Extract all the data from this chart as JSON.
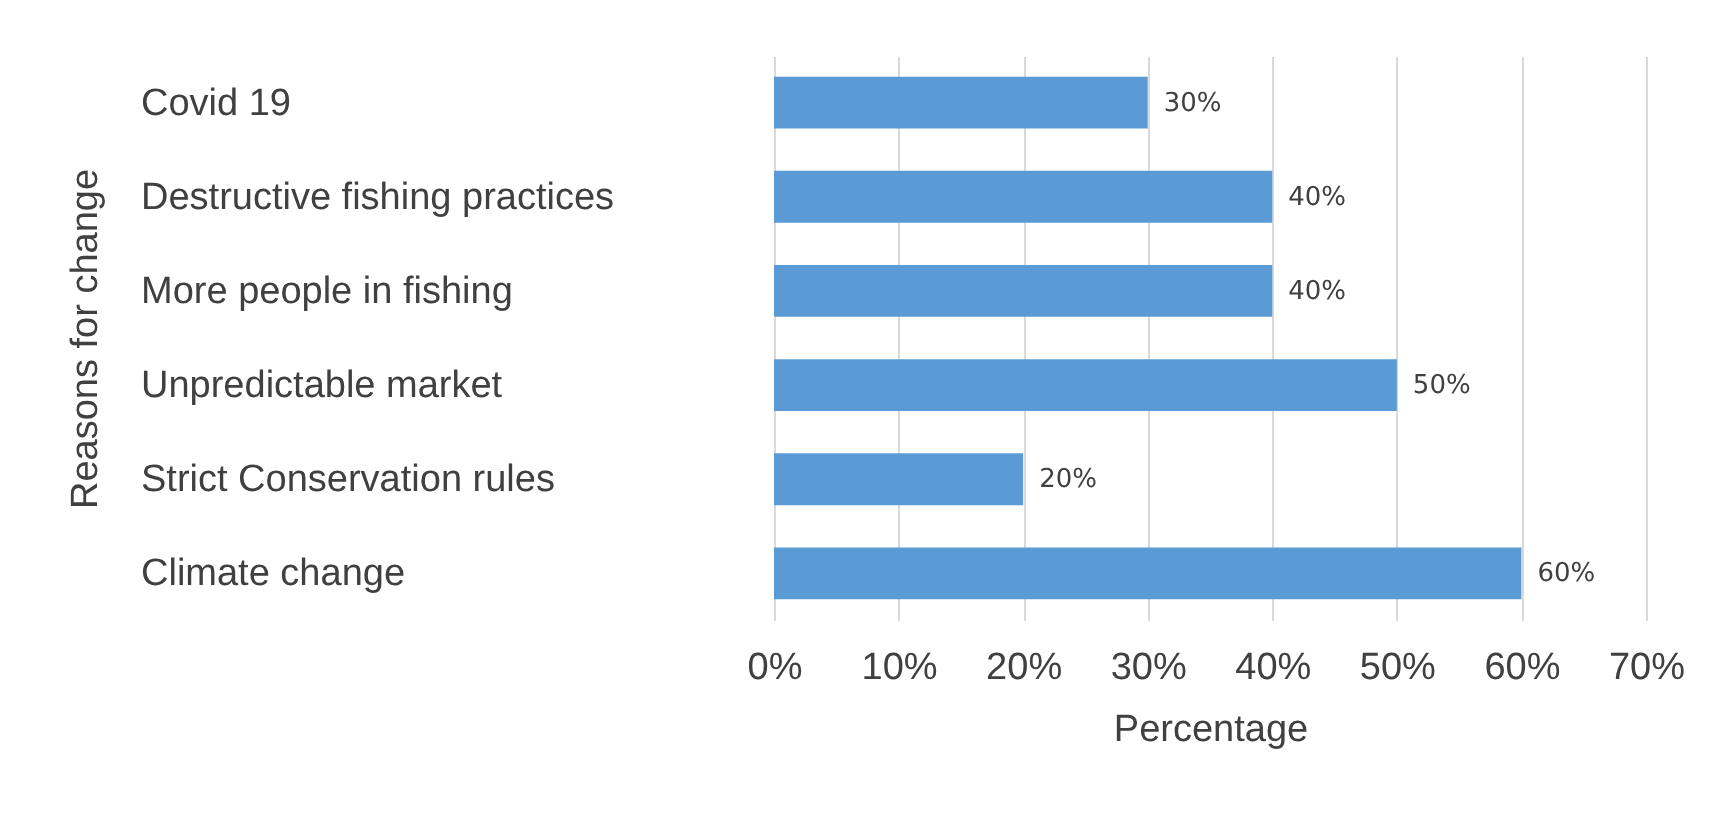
{
  "chart_data": {
    "type": "bar",
    "orientation": "horizontal",
    "xlabel": "Percentage",
    "ylabel": "Reasons for change",
    "categories": [
      "Covid 19",
      "Destructive fishing practices",
      "More people in fishing",
      "Unpredictable market",
      "Strict Conservation rules",
      "Climate change"
    ],
    "values": [
      30,
      40,
      40,
      50,
      20,
      60
    ],
    "value_labels": [
      "30%",
      "40%",
      "40%",
      "50%",
      "20%",
      "60%"
    ],
    "color": "#5b9bd5",
    "xlim": [
      0,
      70
    ],
    "xticks": [
      {
        "value": 0,
        "label": "0%"
      },
      {
        "value": 10,
        "label": "10%"
      },
      {
        "value": 20,
        "label": "20%"
      },
      {
        "value": 30,
        "label": "30%"
      },
      {
        "value": 40,
        "label": "40%"
      },
      {
        "value": 50,
        "label": "50%"
      },
      {
        "value": 60,
        "label": "60%"
      },
      {
        "value": 70,
        "label": "70%"
      }
    ],
    "grid": "x"
  }
}
